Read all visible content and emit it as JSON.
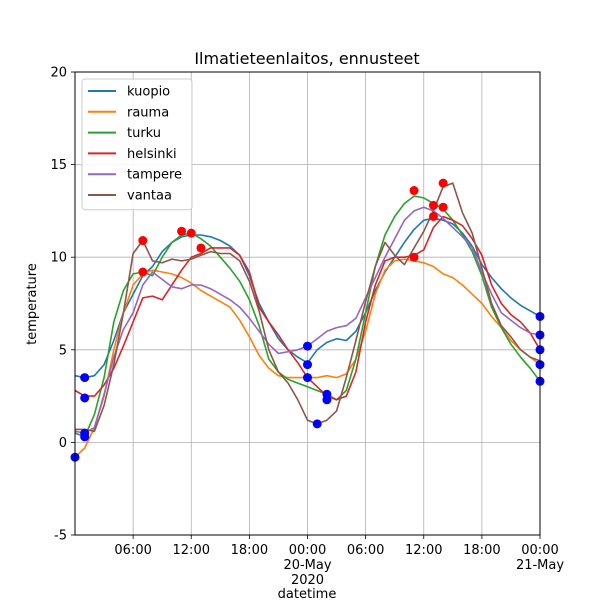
{
  "chart_data": {
    "type": "line",
    "title": "Ilmatieteenlaitos, ennusteet",
    "xlabel": "datetime",
    "ylabel": "temperature",
    "ylim": [
      -5,
      20
    ],
    "xlim_hours": [
      0,
      48
    ],
    "grid": true,
    "legend_position": "top-left",
    "y_ticks": [
      -5,
      0,
      5,
      10,
      15,
      20
    ],
    "x_ticks": [
      {
        "hour": 6,
        "label": "06:00"
      },
      {
        "hour": 12,
        "label": "12:00"
      },
      {
        "hour": 18,
        "label": "18:00"
      },
      {
        "hour": 24,
        "label": "00:00\n20-May\n2020"
      },
      {
        "hour": 30,
        "label": "06:00"
      },
      {
        "hour": 36,
        "label": "12:00"
      },
      {
        "hour": 42,
        "label": "18:00"
      },
      {
        "hour": 48,
        "label": "00:00\n21-May"
      }
    ],
    "series": [
      {
        "name": "kuopio",
        "color": "#1f77b4",
        "x": [
          0,
          1,
          2,
          3,
          4,
          5,
          6,
          7,
          8,
          9,
          10,
          11,
          12,
          13,
          14,
          15,
          16,
          17,
          18,
          19,
          20,
          21,
          22,
          23,
          24,
          25,
          26,
          27,
          28,
          29,
          30,
          31,
          32,
          33,
          34,
          35,
          36,
          37,
          38,
          39,
          40,
          41,
          42,
          43,
          44,
          45,
          46,
          47,
          48
        ],
        "y": [
          3.6,
          3.5,
          3.6,
          4.2,
          5.5,
          7.0,
          8.0,
          9.0,
          9.5,
          10.3,
          10.8,
          11.1,
          11.2,
          11.2,
          11.1,
          10.9,
          10.6,
          10.1,
          9.0,
          7.5,
          6.5,
          5.6,
          5.0,
          4.6,
          4.3,
          5.0,
          5.4,
          5.6,
          5.5,
          6.0,
          7.0,
          8.2,
          9.2,
          10.0,
          10.8,
          11.5,
          12.0,
          12.1,
          12.0,
          11.8,
          11.3,
          10.6,
          9.6,
          8.9,
          8.3,
          7.8,
          7.4,
          7.1,
          6.8
        ]
      },
      {
        "name": "rauma",
        "color": "#ff7f0e",
        "x": [
          0,
          1,
          2,
          3,
          4,
          5,
          6,
          7,
          8,
          9,
          10,
          11,
          12,
          13,
          14,
          15,
          16,
          17,
          18,
          19,
          20,
          21,
          22,
          23,
          24,
          25,
          26,
          27,
          28,
          29,
          30,
          31,
          32,
          33,
          34,
          35,
          36,
          37,
          38,
          39,
          40,
          41,
          42,
          43,
          44,
          45,
          46,
          47,
          48
        ],
        "y": [
          -0.8,
          -0.3,
          0.8,
          2.5,
          5.0,
          7.0,
          8.5,
          9.1,
          9.3,
          9.2,
          9.1,
          8.9,
          8.6,
          8.2,
          7.9,
          7.6,
          7.3,
          6.6,
          5.7,
          4.7,
          4.0,
          3.6,
          3.5,
          3.5,
          3.5,
          3.5,
          3.6,
          3.5,
          3.7,
          4.5,
          6.0,
          8.0,
          9.3,
          9.8,
          9.9,
          9.8,
          9.7,
          9.5,
          9.1,
          8.9,
          8.5,
          8.0,
          7.5,
          6.8,
          6.2,
          5.5,
          5.0,
          4.6,
          4.2
        ]
      },
      {
        "name": "turku",
        "color": "#2ca02c",
        "x": [
          0,
          1,
          2,
          3,
          4,
          5,
          6,
          7,
          8,
          9,
          10,
          11,
          12,
          13,
          14,
          15,
          16,
          17,
          18,
          19,
          20,
          21,
          22,
          23,
          24,
          25,
          26,
          27,
          28,
          29,
          30,
          31,
          32,
          33,
          34,
          35,
          36,
          37,
          38,
          39,
          40,
          41,
          42,
          43,
          44,
          45,
          46,
          47,
          48
        ],
        "y": [
          0.5,
          0.3,
          1.5,
          3.5,
          6.5,
          8.2,
          9.1,
          9.2,
          9.0,
          10.0,
          10.8,
          11.2,
          11.3,
          11.0,
          10.6,
          10.0,
          9.4,
          8.7,
          7.7,
          6.3,
          4.5,
          3.8,
          3.4,
          3.2,
          3.0,
          2.8,
          2.6,
          2.3,
          2.8,
          4.5,
          7.0,
          9.5,
          11.2,
          12.2,
          12.9,
          13.3,
          13.2,
          12.9,
          12.6,
          12.0,
          11.2,
          10.3,
          9.0,
          7.3,
          6.2,
          5.3,
          4.6,
          4.0,
          3.3
        ]
      },
      {
        "name": "helsinki",
        "color": "#d62728",
        "x": [
          0,
          1,
          2,
          3,
          4,
          5,
          6,
          7,
          8,
          9,
          10,
          11,
          12,
          13,
          14,
          15,
          16,
          17,
          18,
          19,
          20,
          21,
          22,
          23,
          24,
          25,
          26,
          27,
          28,
          29,
          30,
          31,
          32,
          33,
          34,
          35,
          36,
          37,
          38,
          39,
          40,
          41,
          42,
          43,
          44,
          45,
          46,
          47,
          48
        ],
        "y": [
          2.8,
          2.5,
          2.5,
          3.1,
          4.0,
          5.2,
          6.5,
          7.8,
          7.9,
          7.7,
          8.5,
          9.3,
          10.0,
          10.2,
          10.5,
          10.5,
          10.5,
          10.1,
          9.2,
          7.3,
          6.5,
          5.8,
          5.0,
          4.3,
          3.5,
          3.0,
          2.5,
          2.3,
          2.5,
          3.8,
          6.5,
          8.5,
          9.8,
          10.0,
          10.0,
          10.1,
          10.4,
          11.6,
          12.2,
          12.0,
          11.7,
          11.0,
          10.1,
          8.5,
          7.5,
          6.9,
          6.5,
          5.9,
          5.0
        ]
      },
      {
        "name": "tampere",
        "color": "#9467bd",
        "x": [
          0,
          1,
          2,
          3,
          4,
          5,
          6,
          7,
          8,
          9,
          10,
          11,
          12,
          13,
          14,
          15,
          16,
          17,
          18,
          19,
          20,
          21,
          22,
          23,
          24,
          25,
          26,
          27,
          28,
          29,
          30,
          31,
          32,
          33,
          34,
          35,
          36,
          37,
          38,
          39,
          40,
          41,
          42,
          43,
          44,
          45,
          46,
          47,
          48
        ],
        "y": [
          0.6,
          0.5,
          0.8,
          2.6,
          4.6,
          6.1,
          7.0,
          8.5,
          9.2,
          8.8,
          8.4,
          8.3,
          8.5,
          8.5,
          8.3,
          8.0,
          7.7,
          7.3,
          6.7,
          6.0,
          5.3,
          4.8,
          4.9,
          5.0,
          5.2,
          5.6,
          6.0,
          6.2,
          6.3,
          6.7,
          7.8,
          8.9,
          10.0,
          11.0,
          12.0,
          12.5,
          12.7,
          12.5,
          12.1,
          11.6,
          11.1,
          10.5,
          9.2,
          8.0,
          7.0,
          6.6,
          6.2,
          5.9,
          5.8
        ]
      },
      {
        "name": "vantaa",
        "color": "#8c564b",
        "x": [
          0,
          1,
          2,
          3,
          4,
          5,
          6,
          7,
          8,
          9,
          10,
          11,
          12,
          13,
          14,
          15,
          16,
          17,
          18,
          19,
          20,
          21,
          22,
          23,
          24,
          25,
          26,
          27,
          28,
          29,
          30,
          31,
          32,
          33,
          34,
          35,
          36,
          37,
          38,
          39,
          40,
          41,
          42,
          43,
          44,
          45,
          46,
          47,
          48
        ],
        "y": [
          0.7,
          0.7,
          0.6,
          2.0,
          4.2,
          7.0,
          10.2,
          10.9,
          9.8,
          9.7,
          9.9,
          9.8,
          9.9,
          10.1,
          10.3,
          10.2,
          10.2,
          9.8,
          8.7,
          7.1,
          5.0,
          3.8,
          3.2,
          2.3,
          1.2,
          1.0,
          1.2,
          1.7,
          3.5,
          5.5,
          7.6,
          9.5,
          10.8,
          10.1,
          9.6,
          10.5,
          11.4,
          12.5,
          13.8,
          14.0,
          12.4,
          11.3,
          9.4,
          7.5,
          6.3,
          5.7,
          5.0,
          4.6,
          4.4
        ]
      }
    ],
    "min_markers": {
      "color": "#0000ff",
      "points": [
        {
          "x": 0,
          "y": -0.8
        },
        {
          "x": 1,
          "y": 3.5
        },
        {
          "x": 1,
          "y": 2.4
        },
        {
          "x": 1,
          "y": 0.3
        },
        {
          "x": 1,
          "y": 0.5
        },
        {
          "x": 24,
          "y": 5.2
        },
        {
          "x": 24,
          "y": 4.2
        },
        {
          "x": 24,
          "y": 3.5
        },
        {
          "x": 25,
          "y": 1.0
        },
        {
          "x": 26,
          "y": 2.6
        },
        {
          "x": 26,
          "y": 2.3
        },
        {
          "x": 48,
          "y": 6.8
        },
        {
          "x": 48,
          "y": 5.8
        },
        {
          "x": 48,
          "y": 5.0
        },
        {
          "x": 48,
          "y": 4.2
        },
        {
          "x": 48,
          "y": 3.3
        }
      ]
    },
    "max_markers": {
      "color": "#ff0000",
      "points": [
        {
          "x": 7,
          "y": 10.9
        },
        {
          "x": 7,
          "y": 9.2
        },
        {
          "x": 11,
          "y": 11.4
        },
        {
          "x": 12,
          "y": 11.3
        },
        {
          "x": 13,
          "y": 10.5
        },
        {
          "x": 35,
          "y": 13.6
        },
        {
          "x": 35,
          "y": 10.0
        },
        {
          "x": 37,
          "y": 12.8
        },
        {
          "x": 37,
          "y": 12.2
        },
        {
          "x": 38,
          "y": 12.7
        },
        {
          "x": 38,
          "y": 14.0
        }
      ]
    }
  }
}
